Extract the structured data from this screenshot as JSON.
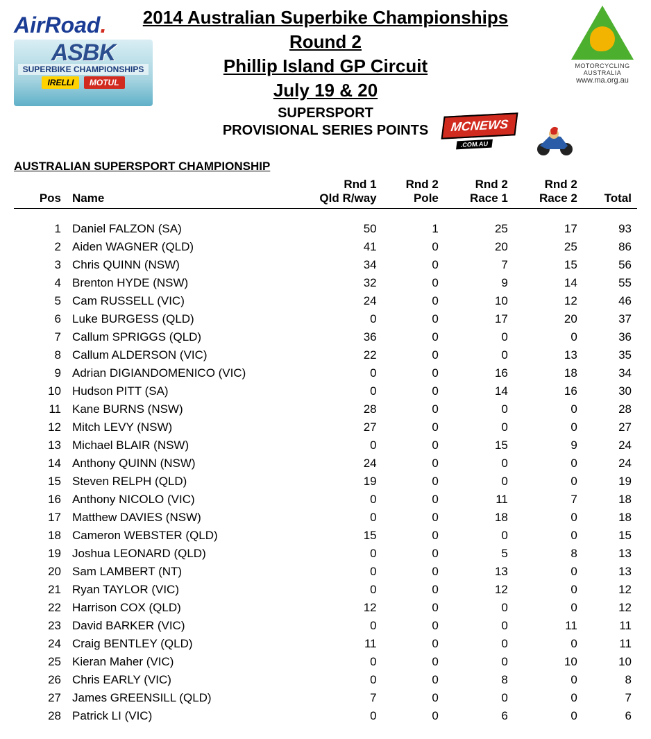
{
  "header": {
    "title_main": "2014 Australian Superbike Championships",
    "title_round": "Round 2",
    "title_circuit": "Phillip Island GP Circuit",
    "title_date": "July 19 & 20",
    "class_name": "SUPERSPORT",
    "series_label": "PROVISIONAL SERIES POINTS"
  },
  "logos": {
    "airroad": "AirRoad",
    "asbk": "ASBK",
    "asbk_sub": "SUPERBIKE CHAMPIONSHIPS",
    "pirelli": "IRELLI",
    "motul": "MOTUL",
    "ma_text": "MOTORCYCLING AUSTRALIA",
    "ma_url": "www.ma.org.au",
    "mcnews": "MCNEWS",
    "mcnews_sub": ".COM.AU"
  },
  "section_title": "AUSTRALIAN SUPERSPORT CHAMPIONSHIP",
  "columns": {
    "pos": "Pos",
    "name": "Name",
    "rnd1_l1": "Rnd 1",
    "rnd1_l2": "Qld R/way",
    "rnd2p_l1": "Rnd 2",
    "rnd2p_l2": "Pole",
    "rnd2r1_l1": "Rnd 2",
    "rnd2r1_l2": "Race 1",
    "rnd2r2_l1": "Rnd 2",
    "rnd2r2_l2": "Race 2",
    "total": "Total"
  },
  "rows": [
    {
      "pos": 1,
      "name": "Daniel FALZON (SA)",
      "r1": 50,
      "pole": 1,
      "race1": 25,
      "race2": 17,
      "total": 93
    },
    {
      "pos": 2,
      "name": "Aiden WAGNER (QLD)",
      "r1": 41,
      "pole": 0,
      "race1": 20,
      "race2": 25,
      "total": 86
    },
    {
      "pos": 3,
      "name": "Chris QUINN (NSW)",
      "r1": 34,
      "pole": 0,
      "race1": 7,
      "race2": 15,
      "total": 56
    },
    {
      "pos": 4,
      "name": "Brenton HYDE (NSW)",
      "r1": 32,
      "pole": 0,
      "race1": 9,
      "race2": 14,
      "total": 55
    },
    {
      "pos": 5,
      "name": "Cam RUSSELL (VIC)",
      "r1": 24,
      "pole": 0,
      "race1": 10,
      "race2": 12,
      "total": 46
    },
    {
      "pos": 6,
      "name": "Luke BURGESS (QLD)",
      "r1": 0,
      "pole": 0,
      "race1": 17,
      "race2": 20,
      "total": 37
    },
    {
      "pos": 7,
      "name": "Callum SPRIGGS (QLD)",
      "r1": 36,
      "pole": 0,
      "race1": 0,
      "race2": 0,
      "total": 36
    },
    {
      "pos": 8,
      "name": "Callum ALDERSON (VIC)",
      "r1": 22,
      "pole": 0,
      "race1": 0,
      "race2": 13,
      "total": 35
    },
    {
      "pos": 9,
      "name": "Adrian DIGIANDOMENICO (VIC)",
      "r1": 0,
      "pole": 0,
      "race1": 16,
      "race2": 18,
      "total": 34
    },
    {
      "pos": 10,
      "name": "Hudson PITT (SA)",
      "r1": 0,
      "pole": 0,
      "race1": 14,
      "race2": 16,
      "total": 30
    },
    {
      "pos": 11,
      "name": "Kane BURNS (NSW)",
      "r1": 28,
      "pole": 0,
      "race1": 0,
      "race2": 0,
      "total": 28
    },
    {
      "pos": 12,
      "name": "Mitch LEVY (NSW)",
      "r1": 27,
      "pole": 0,
      "race1": 0,
      "race2": 0,
      "total": 27
    },
    {
      "pos": 13,
      "name": "Michael BLAIR (NSW)",
      "r1": 0,
      "pole": 0,
      "race1": 15,
      "race2": 9,
      "total": 24
    },
    {
      "pos": 14,
      "name": "Anthony QUINN (NSW)",
      "r1": 24,
      "pole": 0,
      "race1": 0,
      "race2": 0,
      "total": 24
    },
    {
      "pos": 15,
      "name": "Steven RELPH (QLD)",
      "r1": 19,
      "pole": 0,
      "race1": 0,
      "race2": 0,
      "total": 19
    },
    {
      "pos": 16,
      "name": "Anthony NICOLO (VIC)",
      "r1": 0,
      "pole": 0,
      "race1": 11,
      "race2": 7,
      "total": 18
    },
    {
      "pos": 17,
      "name": "Matthew DAVIES (NSW)",
      "r1": 0,
      "pole": 0,
      "race1": 18,
      "race2": 0,
      "total": 18
    },
    {
      "pos": 18,
      "name": "Cameron WEBSTER (QLD)",
      "r1": 15,
      "pole": 0,
      "race1": 0,
      "race2": 0,
      "total": 15
    },
    {
      "pos": 19,
      "name": "Joshua LEONARD (QLD)",
      "r1": 0,
      "pole": 0,
      "race1": 5,
      "race2": 8,
      "total": 13
    },
    {
      "pos": 20,
      "name": "Sam LAMBERT (NT)",
      "r1": 0,
      "pole": 0,
      "race1": 13,
      "race2": 0,
      "total": 13
    },
    {
      "pos": 21,
      "name": "Ryan TAYLOR (VIC)",
      "r1": 0,
      "pole": 0,
      "race1": 12,
      "race2": 0,
      "total": 12
    },
    {
      "pos": 22,
      "name": "Harrison COX (QLD)",
      "r1": 12,
      "pole": 0,
      "race1": 0,
      "race2": 0,
      "total": 12
    },
    {
      "pos": 23,
      "name": "David BARKER (VIC)",
      "r1": 0,
      "pole": 0,
      "race1": 0,
      "race2": 11,
      "total": 11
    },
    {
      "pos": 24,
      "name": "Craig BENTLEY (QLD)",
      "r1": 11,
      "pole": 0,
      "race1": 0,
      "race2": 0,
      "total": 11
    },
    {
      "pos": 25,
      "name": "Kieran Maher (VIC)",
      "r1": 0,
      "pole": 0,
      "race1": 0,
      "race2": 10,
      "total": 10
    },
    {
      "pos": 26,
      "name": "Chris EARLY (VIC)",
      "r1": 0,
      "pole": 0,
      "race1": 8,
      "race2": 0,
      "total": 8
    },
    {
      "pos": 27,
      "name": "James GREENSILL (QLD)",
      "r1": 7,
      "pole": 0,
      "race1": 0,
      "race2": 0,
      "total": 7
    },
    {
      "pos": 28,
      "name": "Patrick LI  (VIC)",
      "r1": 0,
      "pole": 0,
      "race1": 6,
      "race2": 0,
      "total": 6
    }
  ],
  "style": {
    "page_bg": "#ffffff",
    "text_color": "#000000",
    "title_fontsize": 26,
    "table_fontsize": 17,
    "airroad_color": "#1b3c94",
    "airroad_dot_color": "#d12a1f",
    "ma_green": "#4caf2e",
    "ma_gold": "#f2b400",
    "mcnews_red": "#d12a1f",
    "pirelli_bg": "#ffd200",
    "motul_bg": "#d12a1f"
  }
}
